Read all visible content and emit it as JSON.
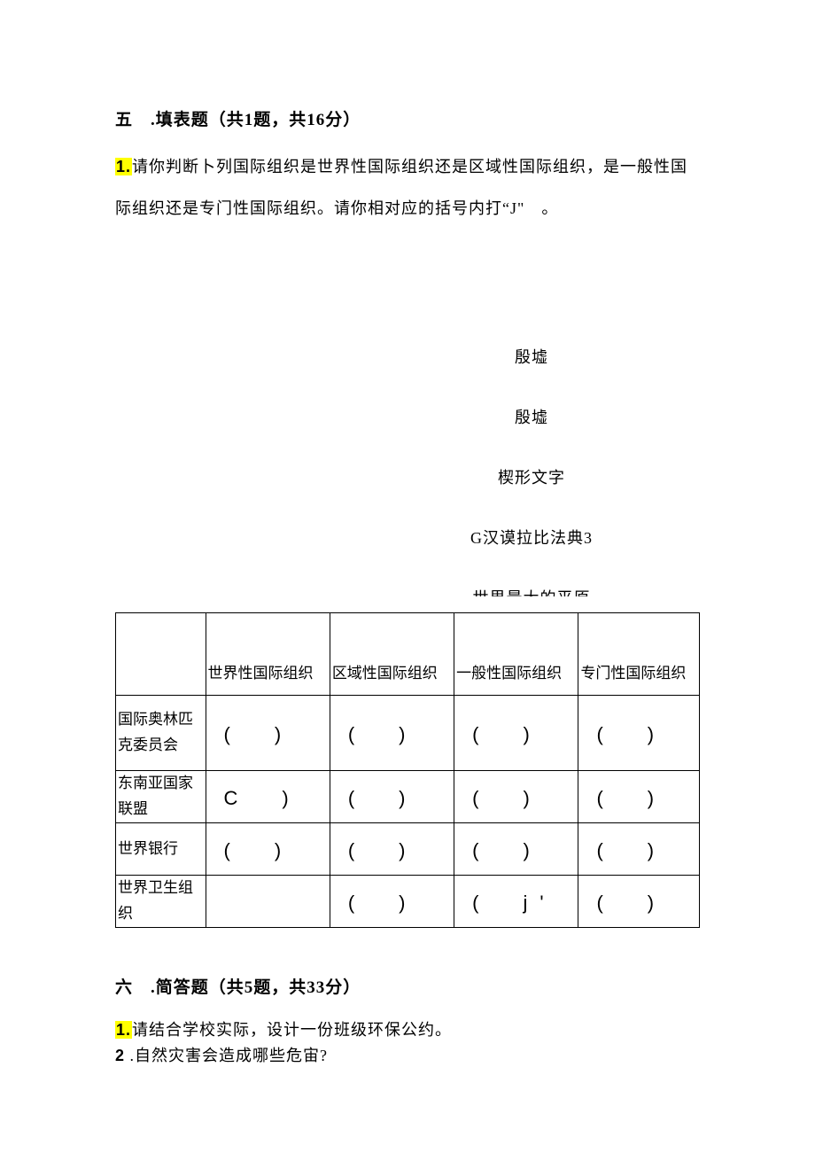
{
  "section5": {
    "heading": "五　.填表题（共1题，共16分）",
    "q1_num": "1.",
    "q1_text_a": "请你判断卜列国际组织是世界性国际组织还是区域性国际组织，是一般性国",
    "q1_text_b": "际组织还是专门性国际组织。请你相对应的括号内打“J\"　。"
  },
  "midlist": {
    "l1": "殷墟",
    "l2": "殷墟",
    "l3": "楔形文字",
    "l4": "G汉谟拉比法典3",
    "l5": "世界最大的平原"
  },
  "table": {
    "head": {
      "c0": "",
      "c1": "世界性国际组织",
      "c2": "区域性国际组织",
      "c3": "一般性国际组织",
      "c4": "专门性国际组织"
    },
    "rows": [
      {
        "label": "国际奥林匹克委员会",
        "c1": "(　)",
        "c2": "(　)",
        "c3": "(　)",
        "c4": "(　)"
      },
      {
        "label": "东南亚国家联盟",
        "c1": "C　)",
        "c2": "(　)",
        "c3": "(　)",
        "c4": "(　)"
      },
      {
        "label": "世界银行",
        "c1": "(　)",
        "c2": "(　)",
        "c3": "(　)",
        "c4": "(　)"
      },
      {
        "label": "世界卫生组织",
        "c1": "",
        "c2": "(　)",
        "c3": "(　j'",
        "c4": "(　)"
      }
    ]
  },
  "section6": {
    "heading": "六　.简答题（共5题，共33分）",
    "q1_num": "1.",
    "q1_text": "请结合学校实际，设计一份班级环保公约。",
    "q2_num": "2",
    "q2_text": " .自然灾害会造成哪些危宙?"
  }
}
